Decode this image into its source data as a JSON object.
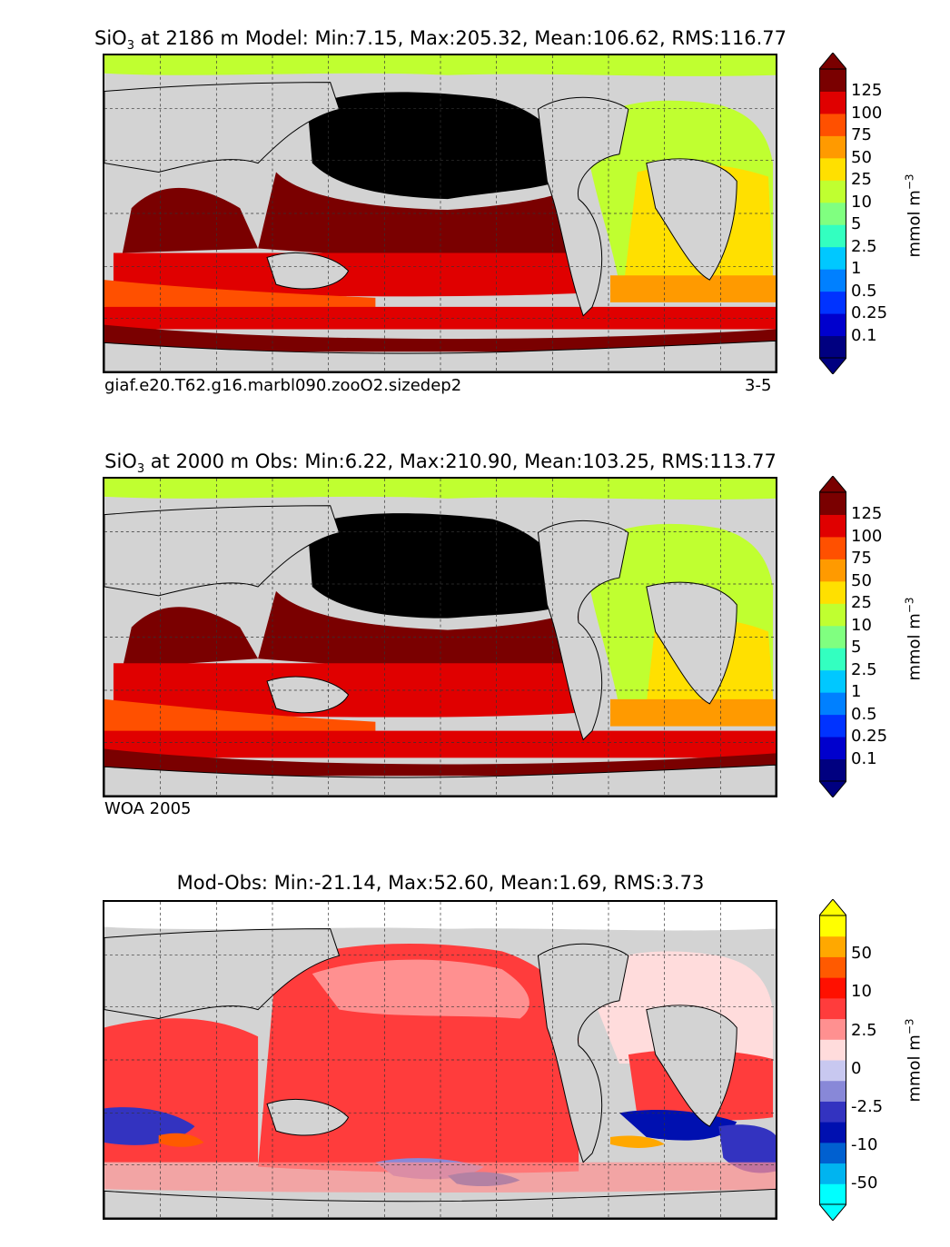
{
  "panels": [
    {
      "title_prefix": "SiO",
      "title_sub": "3",
      "title_rest": " at 2186 m Model: Min:7.15, Max:205.32, Mean:106.62, RMS:116.77",
      "caption_left": "giaf.e20.T62.g16.marbl090.zooO2.sizedep2",
      "caption_right": "3-5",
      "colorbar": {
        "ticks": [
          "125",
          "100",
          "75",
          "50",
          "25",
          "10",
          "5",
          "2.5",
          "1",
          "0.5",
          "0.25",
          "0.1"
        ],
        "colors": [
          "#000080",
          "#0000cd",
          "#0033ff",
          "#0080ff",
          "#00c8ff",
          "#33ffc0",
          "#80ff80",
          "#c0ff30",
          "#ffe000",
          "#ff9a00",
          "#ff5000",
          "#e00000",
          "#7a0000"
        ],
        "unit": "mmol m",
        "unit_exp": "−3"
      }
    },
    {
      "title_prefix": "SiO",
      "title_sub": "3",
      "title_rest": " at 2000 m Obs: Min:6.22, Max:210.90, Mean:103.25, RMS:113.77",
      "caption_left": "WOA 2005",
      "caption_right": "",
      "colorbar": {
        "ticks": [
          "125",
          "100",
          "75",
          "50",
          "25",
          "10",
          "5",
          "2.5",
          "1",
          "0.5",
          "0.25",
          "0.1"
        ],
        "colors": [
          "#000080",
          "#0000cd",
          "#0033ff",
          "#0080ff",
          "#00c8ff",
          "#33ffc0",
          "#80ff80",
          "#c0ff30",
          "#ffe000",
          "#ff9a00",
          "#ff5000",
          "#e00000",
          "#7a0000"
        ],
        "unit": "mmol m",
        "unit_exp": "−3"
      }
    },
    {
      "title_prefix": "Mod-Obs: Min:-21.14, Max:52.60, Mean:1.69, RMS:3.73",
      "title_sub": "",
      "title_rest": "",
      "caption_left": "",
      "caption_right": "",
      "colorbar": {
        "ticks": [
          "50",
          "10",
          "2.5",
          "0",
          "-2.5",
          "-10",
          "-50"
        ],
        "colors": [
          "#00ffff",
          "#00b4f0",
          "#0060d0",
          "#0010b0",
          "#3333c0",
          "#8888d8",
          "#c8c8f0",
          "#ffdcdc",
          "#ff9090",
          "#ff3c3c",
          "#ff1000",
          "#ff5a00",
          "#ffa800",
          "#ffff00"
        ],
        "unit": "mmol m",
        "unit_exp": "−3"
      }
    }
  ]
}
